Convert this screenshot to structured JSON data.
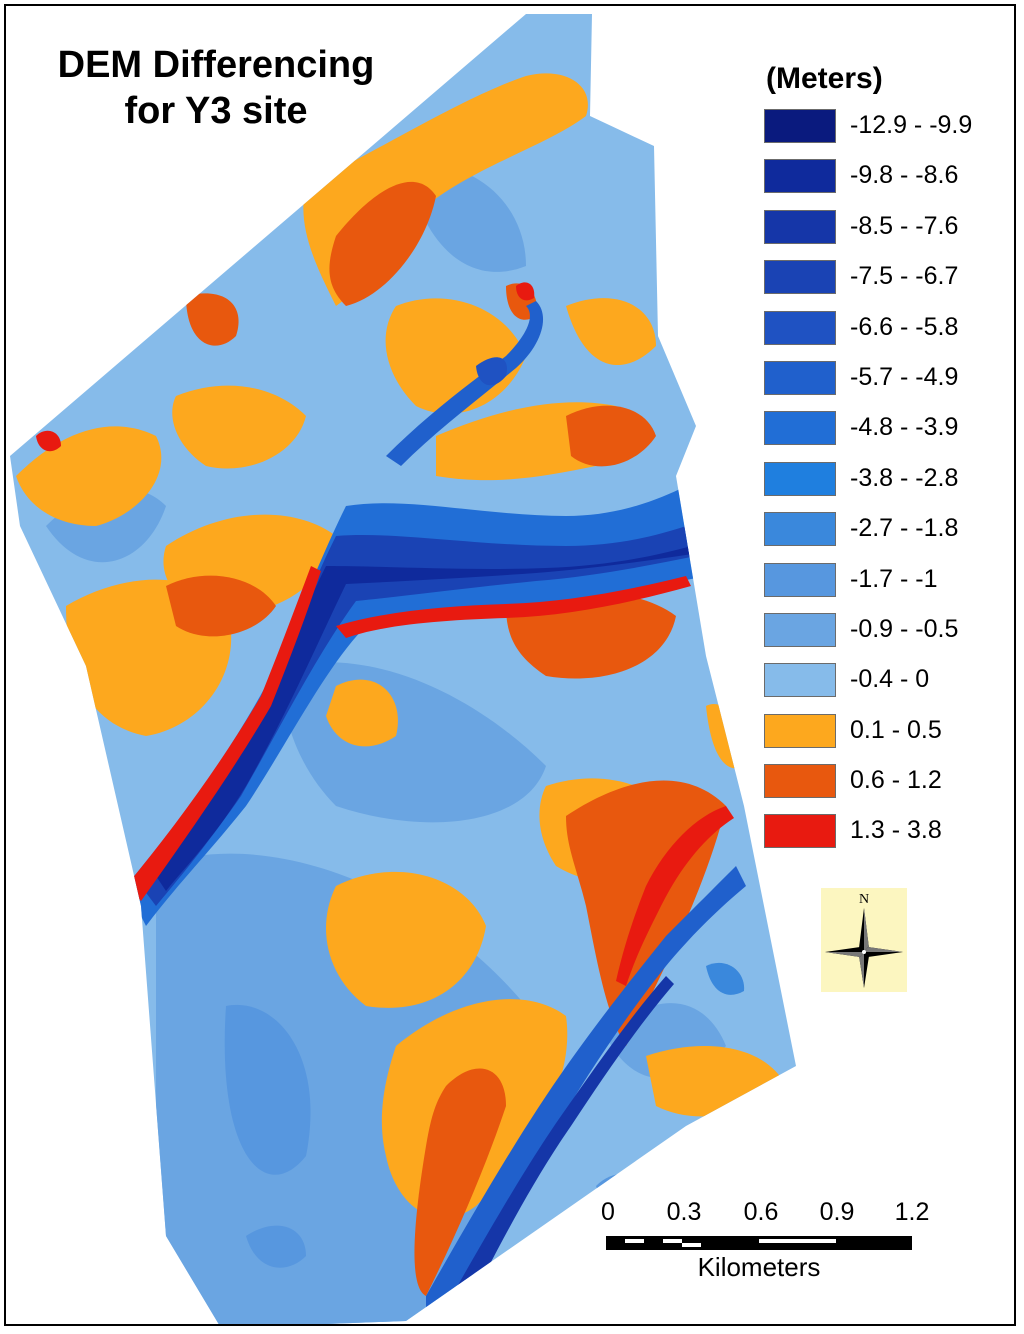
{
  "title_lines": [
    "DEM Differencing",
    "for Y3 site"
  ],
  "legend": {
    "title": "(Meters)",
    "items": [
      {
        "label": "-12.9 - -9.9",
        "color": "#0a1a7e"
      },
      {
        "label": "-9.8 - -8.6",
        "color": "#0f2a9c"
      },
      {
        "label": "-8.5 - -7.6",
        "color": "#1536a8"
      },
      {
        "label": "-7.5 - -6.7",
        "color": "#1a43b4"
      },
      {
        "label": "-6.6 - -5.8",
        "color": "#1f52c2"
      },
      {
        "label": "-5.7 - -4.9",
        "color": "#2060cc"
      },
      {
        "label": "-4.8 - -3.9",
        "color": "#216ed6"
      },
      {
        "label": "-3.8 - -2.8",
        "color": "#1f7fdf"
      },
      {
        "label": "-2.7 - -1.8",
        "color": "#3a88dc"
      },
      {
        "label": "-1.7 - -1",
        "color": "#5797df"
      },
      {
        "label": "-0.9 - -0.5",
        "color": "#6aa5e2"
      },
      {
        "label": "-0.4 - 0",
        "color": "#86bbea"
      },
      {
        "label": "0.1 - 0.5",
        "color": "#fda81e"
      },
      {
        "label": "0.6 - 1.2",
        "color": "#e8580e"
      },
      {
        "label": "1.3 - 3.8",
        "color": "#e81a10"
      }
    ]
  },
  "north_arrow": {
    "label": "N",
    "icon": "north-arrow-icon"
  },
  "scale_bar": {
    "ticks": [
      "0",
      "0.3",
      "0.6",
      "0.9",
      "1.2"
    ],
    "units": "Kilometers"
  }
}
